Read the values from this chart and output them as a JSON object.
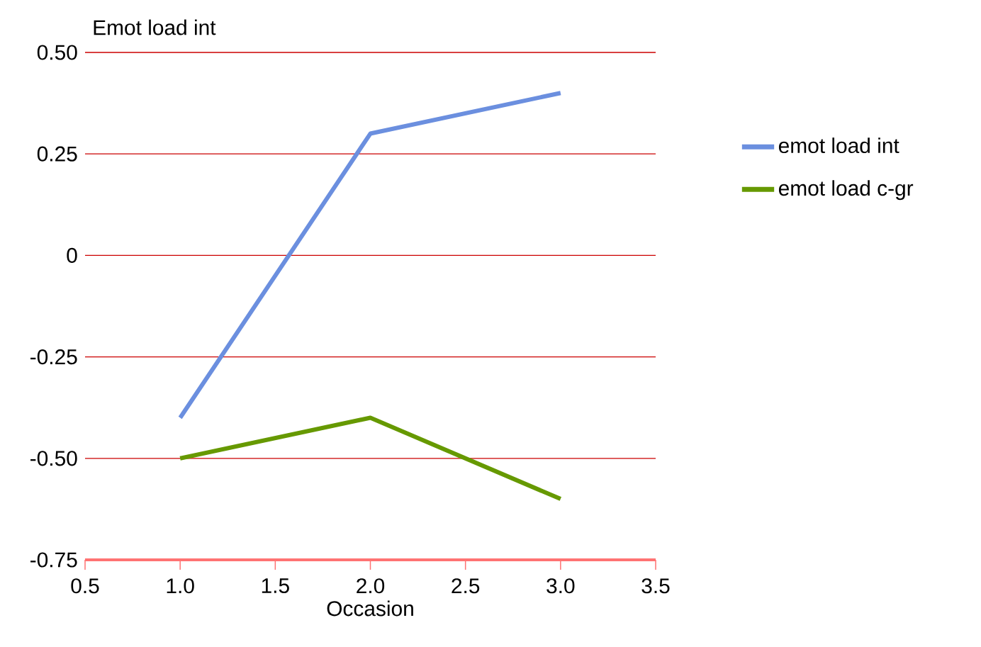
{
  "chart_data": {
    "type": "line",
    "xlabel": "Occasion",
    "ylabel": "Emot load int",
    "x": [
      1.0,
      2.0,
      3.0
    ],
    "series": [
      {
        "name": "emot load int",
        "color": "#6b8fdf",
        "values": [
          -0.4,
          0.3,
          0.4
        ]
      },
      {
        "name": "emot load c-gr",
        "color": "#669900",
        "values": [
          -0.5,
          -0.4,
          -0.6
        ]
      }
    ],
    "xlim": [
      0.5,
      3.5
    ],
    "ylim": [
      -0.75,
      0.5
    ],
    "xticks": [
      {
        "value": 0.5,
        "label": "0.5"
      },
      {
        "value": 1.0,
        "label": "1.0"
      },
      {
        "value": 1.5,
        "label": "1.5"
      },
      {
        "value": 2.0,
        "label": "2.0"
      },
      {
        "value": 2.5,
        "label": "2.5"
      },
      {
        "value": 3.0,
        "label": "3.0"
      },
      {
        "value": 3.5,
        "label": "3.5"
      }
    ],
    "yticks": [
      {
        "value": -0.75,
        "label": "-0.75"
      },
      {
        "value": -0.5,
        "label": "-0.50"
      },
      {
        "value": -0.25,
        "label": "-0.25"
      },
      {
        "value": 0,
        "label": "0"
      },
      {
        "value": 0.25,
        "label": "0.25"
      },
      {
        "value": 0.5,
        "label": "0.50"
      }
    ],
    "grid": "y",
    "legend": "right",
    "marker": "none",
    "line_style": "solid"
  }
}
